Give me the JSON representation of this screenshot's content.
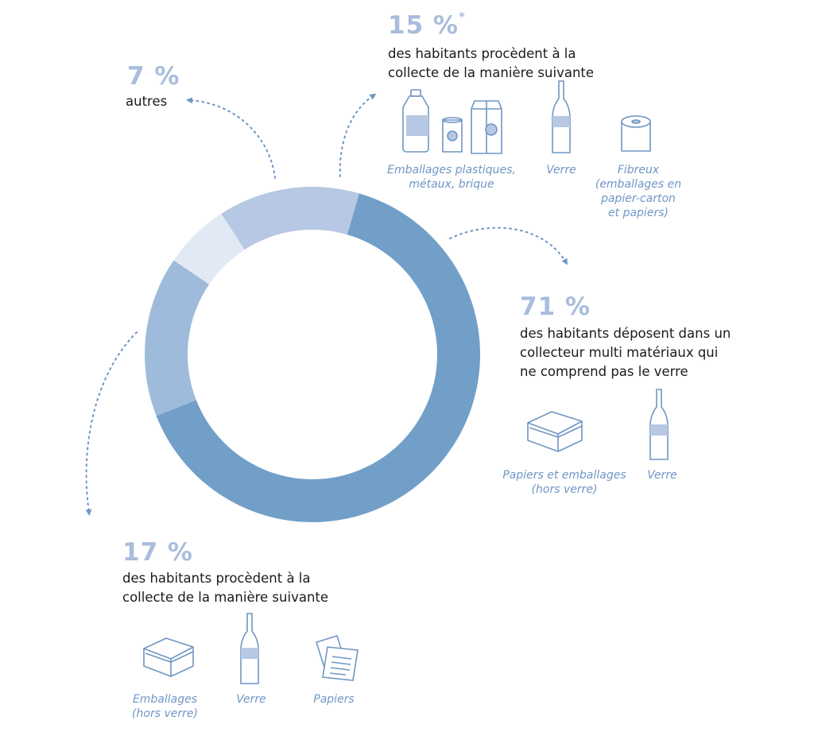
{
  "chart_data": {
    "type": "donut",
    "series": [
      {
        "value": 71,
        "color": "#719fc8"
      },
      {
        "value": 17,
        "color": "#9fbbdc"
      },
      {
        "value": 7,
        "color": "#e1e9f4"
      },
      {
        "value": 15,
        "color": "#b6c8e3"
      }
    ]
  },
  "seg_top": {
    "pct": "15 %",
    "asterisk": "*",
    "text": "des habitants procèdent à la collecte de la manière suivante",
    "items": [
      "Emballages plastiques, métaux, brique",
      "Verre",
      "Fibreux (emballages en papier-carton et papiers)"
    ]
  },
  "seg_autres": {
    "pct": "7 %",
    "text": "autres"
  },
  "seg_71": {
    "pct": "71 %",
    "text": "des habitants déposent dans un collecteur multi matériaux qui ne comprend pas le verre",
    "items": [
      "Papiers et emballages (hors verre)",
      "Verre"
    ]
  },
  "seg_17": {
    "pct": "17 %",
    "text": "des habitants procèdent à la collecte de la manière suivante",
    "items": [
      "Emballages (hors verre)",
      "Verre",
      "Papiers"
    ]
  },
  "icons": [
    "plastic-bottle-icon",
    "can-icon",
    "milk-carton-icon",
    "glass-bottle-icon",
    "paper-roll-icon",
    "box-icon",
    "papers-icon"
  ],
  "colors": {
    "accent": "#719fc8",
    "icon_stroke": "#6f96c4",
    "pct_text": "#a9bddc"
  }
}
